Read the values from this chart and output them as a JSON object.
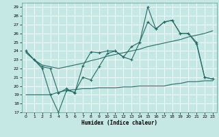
{
  "xlabel": "Humidex (Indice chaleur)",
  "bg_color": "#c5e8e5",
  "grid_color": "#a8d5d0",
  "line_color": "#236b62",
  "xlim": [
    -0.5,
    23.5
  ],
  "ylim": [
    17,
    29.5
  ],
  "yticks": [
    17,
    18,
    19,
    20,
    21,
    22,
    23,
    24,
    25,
    26,
    27,
    28,
    29
  ],
  "xticks": [
    0,
    1,
    2,
    3,
    4,
    5,
    6,
    7,
    8,
    9,
    10,
    11,
    12,
    13,
    14,
    15,
    16,
    17,
    18,
    19,
    20,
    21,
    22,
    23
  ],
  "line1_x": [
    0,
    1,
    2,
    3,
    4,
    5,
    6,
    7,
    8,
    9,
    10,
    11,
    12,
    13,
    14,
    15,
    16,
    17,
    18,
    19,
    20,
    21,
    22,
    23
  ],
  "line1_y": [
    24,
    23,
    22,
    19,
    17,
    19.5,
    19.3,
    21.0,
    20.7,
    22.2,
    23.7,
    24.0,
    23.3,
    23.0,
    25.0,
    29.0,
    26.5,
    27.3,
    27.5,
    26.0,
    26.0,
    24.8,
    21.0,
    20.8
  ],
  "line2_x": [
    0,
    1,
    2,
    3,
    4,
    5,
    6,
    7,
    8,
    9,
    10,
    11,
    12,
    13,
    14,
    15,
    16,
    17,
    18,
    19,
    20,
    21,
    22,
    23
  ],
  "line2_y": [
    24.0,
    23.0,
    22.2,
    22.0,
    19.2,
    19.7,
    19.2,
    22.3,
    23.9,
    23.8,
    24.0,
    24.0,
    23.3,
    24.5,
    25.0,
    27.3,
    26.5,
    27.3,
    27.5,
    26.0,
    26.0,
    25.0,
    21.0,
    20.8
  ],
  "line3_x": [
    0,
    1,
    2,
    3,
    4,
    5,
    6,
    7,
    8,
    9,
    10,
    11,
    12,
    13,
    14,
    15,
    16,
    17,
    18,
    19,
    20,
    21,
    22,
    23
  ],
  "line3_y": [
    23.8,
    23.0,
    22.4,
    22.2,
    22.0,
    22.2,
    22.4,
    22.6,
    22.9,
    23.1,
    23.4,
    23.6,
    23.8,
    24.0,
    24.2,
    24.5,
    24.7,
    24.9,
    25.1,
    25.3,
    25.6,
    25.8,
    26.0,
    26.3
  ],
  "line4_x": [
    0,
    1,
    2,
    3,
    4,
    5,
    6,
    7,
    8,
    9,
    10,
    11,
    12,
    13,
    14,
    15,
    16,
    17,
    18,
    19,
    20,
    21,
    22,
    23
  ],
  "line4_y": [
    19.0,
    19.0,
    19.0,
    19.0,
    19.3,
    19.5,
    19.6,
    19.7,
    19.7,
    19.8,
    19.8,
    19.8,
    19.9,
    19.9,
    20.0,
    20.0,
    20.0,
    20.0,
    20.2,
    20.3,
    20.5,
    20.5,
    20.6,
    20.6
  ]
}
